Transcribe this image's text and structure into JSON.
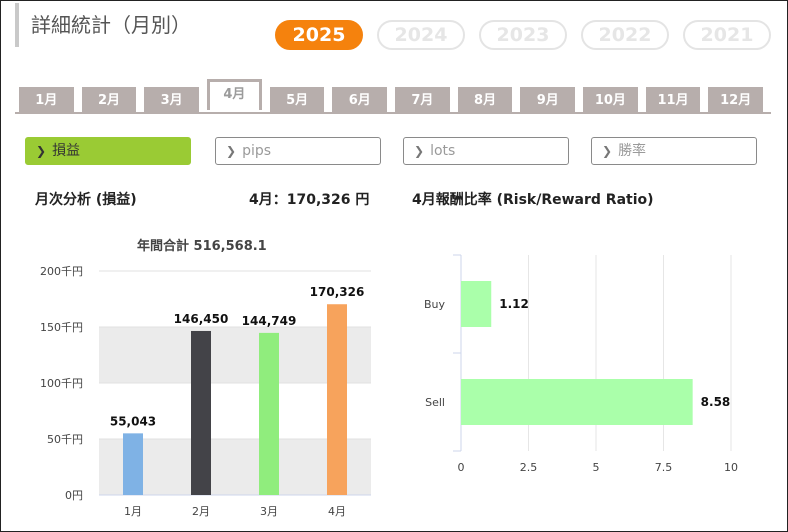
{
  "header": {
    "title": "詳細統計（月別）"
  },
  "years": [
    "2025",
    "2024",
    "2023",
    "2022",
    "2021"
  ],
  "active_year": "2025",
  "months": [
    "1月",
    "2月",
    "3月",
    "4月",
    "5月",
    "6月",
    "7月",
    "8月",
    "9月",
    "10月",
    "11月",
    "12月"
  ],
  "active_month": "4月",
  "metrics": [
    {
      "label": "損益",
      "active": true
    },
    {
      "label": "pips",
      "active": false
    },
    {
      "label": "lots",
      "active": false
    },
    {
      "label": "勝率",
      "active": false
    }
  ],
  "left_panel": {
    "title": "月次分析 (損益)",
    "month_summary": "4月：170,326 円",
    "annual_total": "年間合計 516,568.1"
  },
  "right_panel": {
    "title": "4月報酬比率 (Risk/Reward Ratio)"
  },
  "chart_data": [
    {
      "type": "bar",
      "categories": [
        "1月",
        "2月",
        "3月",
        "4月"
      ],
      "values": [
        55043,
        146450,
        144749,
        170326
      ],
      "value_labels": [
        "55,043",
        "146,450",
        "144,749",
        "170,326"
      ],
      "colors": [
        "#7fb2e5",
        "#434348",
        "#90ed7d",
        "#f7a35c"
      ],
      "yticks": [
        "0円",
        "50千円",
        "100千円",
        "150千円",
        "200千円"
      ],
      "ylim": [
        0,
        200000
      ],
      "title": "年間合計 516,568.1"
    },
    {
      "type": "bar",
      "orientation": "horizontal",
      "categories": [
        "Buy",
        "Sell"
      ],
      "values": [
        1.12,
        8.58
      ],
      "value_labels": [
        "1.12",
        "8.58"
      ],
      "color": "#aaffaa",
      "xticks": [
        "0",
        "2.5",
        "5",
        "7.5",
        "10"
      ],
      "xlim": [
        0,
        10
      ]
    }
  ]
}
